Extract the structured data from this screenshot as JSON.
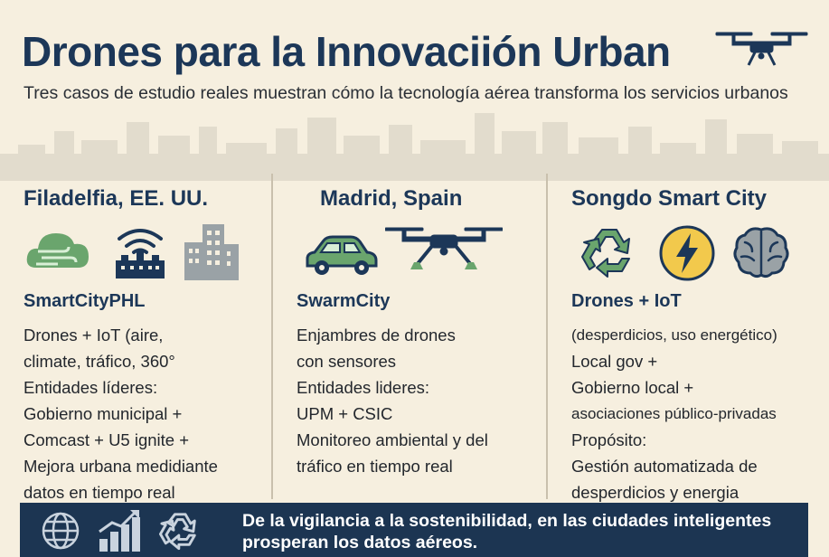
{
  "header": {
    "title": "Drones para la Innovaciión Urban",
    "subtitle": "Tres casos de estudio reales muestran cómo la tecnología aérea transforma los servicios urbanos"
  },
  "columns": [
    {
      "city": "Filadelfia, EE. UU.",
      "project": "SmartCityPHL",
      "icons": [
        "wind-cloud-icon",
        "wifi-tower-icon",
        "buildings-icon"
      ],
      "lines": [
        "Drones + IoT (aire,",
        "climate, tráfico, 360°",
        "Entidades líderes:",
        "Gobierno municipal +",
        "Comcast + U5 ignite +",
        "Mejora urbana medidiante",
        "datos en tiempo real"
      ]
    },
    {
      "city": "Madrid, Spain",
      "project": "SwarmCity",
      "icons": [
        "car-icon",
        "drone-icon"
      ],
      "lines": [
        "Enjambres de drones",
        "con sensores",
        "Entidades lideres:",
        "UPM + CSIC",
        "Monitoreo ambiental y del",
        "tráfico en tiempo real"
      ]
    },
    {
      "city": "Songdo Smart City",
      "project": "Drones + IoT",
      "icons": [
        "recycle-icon",
        "lightning-icon",
        "brain-icon"
      ],
      "lines": [
        "(desperdicios, uso energético)",
        "Local gov +",
        "Gobierno local +",
        "asociaciones público-privadas",
        "Propósito:",
        "Gestión automatizada de",
        "desperdicios y energia"
      ]
    }
  ],
  "footer": {
    "icons": [
      "globe-icon",
      "growth-chart-icon",
      "recycle-icon"
    ],
    "text": "De la vigilancia a la sostenibilidad, en las ciudades inteligentes prosperan los datos aéreos."
  },
  "colors": {
    "background": "#f6efdf",
    "navy": "#1c3758",
    "green": "#6aa56d",
    "gray": "#9aa2a6",
    "yellow": "#f2c94c",
    "footer": "#1c3552"
  }
}
